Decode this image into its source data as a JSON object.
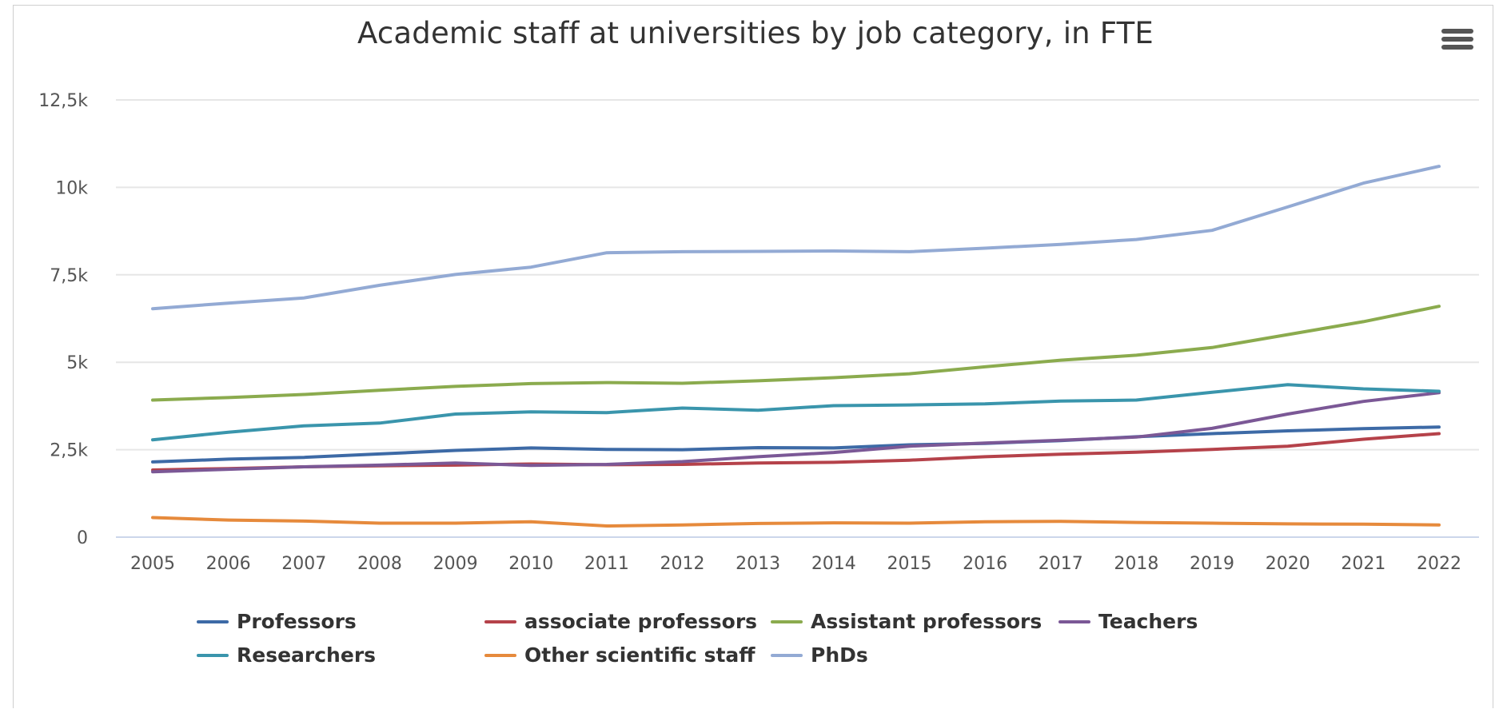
{
  "chart_data": {
    "type": "line",
    "title": "Academic staff at universities by job category, in FTE",
    "xlabel": "",
    "ylabel": "",
    "x": [
      "2005",
      "2006",
      "2007",
      "2008",
      "2009",
      "2010",
      "2011",
      "2012",
      "2013",
      "2014",
      "2015",
      "2016",
      "2017",
      "2018",
      "2019",
      "2020",
      "2021",
      "2022"
    ],
    "ylim": [
      0,
      12500
    ],
    "yticks": [
      0,
      2500,
      5000,
      7500,
      10000,
      12500
    ],
    "ytick_labels": [
      "0",
      "2,5k",
      "5k",
      "7,5k",
      "10k",
      "12,5k"
    ],
    "grid": true,
    "legend_position": "bottom",
    "series": [
      {
        "name": "Professors",
        "color": "#3d6aa6",
        "values": [
          2150,
          2230,
          2280,
          2380,
          2480,
          2550,
          2510,
          2500,
          2560,
          2550,
          2640,
          2680,
          2760,
          2870,
          2960,
          3040,
          3100,
          3150
        ]
      },
      {
        "name": "associate professors",
        "color": "#b5424a",
        "values": [
          1920,
          1960,
          2010,
          2040,
          2060,
          2090,
          2070,
          2080,
          2120,
          2140,
          2200,
          2300,
          2370,
          2430,
          2510,
          2600,
          2800,
          2960
        ]
      },
      {
        "name": "Assistant professors",
        "color": "#8bab4e",
        "values": [
          3920,
          3990,
          4080,
          4200,
          4310,
          4390,
          4420,
          4400,
          4470,
          4560,
          4670,
          4870,
          5060,
          5200,
          5420,
          5790,
          6160,
          6600
        ]
      },
      {
        "name": "Teachers",
        "color": "#7b5896",
        "values": [
          1870,
          1940,
          2010,
          2060,
          2120,
          2050,
          2080,
          2160,
          2300,
          2420,
          2600,
          2690,
          2770,
          2860,
          3110,
          3520,
          3880,
          4130
        ]
      },
      {
        "name": "Researchers",
        "color": "#3a95ac",
        "values": [
          2780,
          3000,
          3180,
          3260,
          3520,
          3580,
          3560,
          3690,
          3630,
          3760,
          3780,
          3810,
          3890,
          3920,
          4140,
          4360,
          4240,
          4170
        ]
      },
      {
        "name": "Other scientific staff",
        "color": "#e68a3c",
        "values": [
          560,
          490,
          460,
          400,
          400,
          440,
          320,
          350,
          390,
          410,
          400,
          440,
          450,
          420,
          400,
          380,
          370,
          350
        ]
      },
      {
        "name": "PhDs",
        "color": "#93aad4",
        "values": [
          6530,
          6690,
          6840,
          7200,
          7510,
          7720,
          8130,
          8160,
          8170,
          8180,
          8160,
          8260,
          8370,
          8510,
          8770,
          9440,
          10120,
          10600
        ]
      }
    ]
  }
}
